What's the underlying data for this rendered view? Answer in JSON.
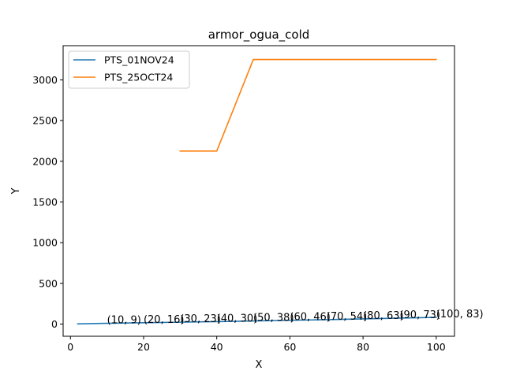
{
  "chart_data": {
    "type": "line",
    "title": "armor_ogua_cold",
    "xlabel": "X",
    "ylabel": "Y",
    "xlim": [
      -2,
      105
    ],
    "ylim": [
      -150,
      3420
    ],
    "xticks": [
      0,
      20,
      40,
      60,
      80,
      100
    ],
    "yticks": [
      0,
      500,
      1000,
      1500,
      2000,
      2500,
      3000
    ],
    "grid": false,
    "legend_position": "top-left",
    "series": [
      {
        "name": "PTS_01NOV24",
        "color": "#1f77b4",
        "x": [
          2,
          10,
          20,
          30,
          40,
          50,
          60,
          70,
          80,
          90,
          100
        ],
        "y": [
          2,
          9,
          16,
          23,
          30,
          38,
          46,
          54,
          63,
          73,
          83
        ]
      },
      {
        "name": "PTS_25OCT24",
        "color": "#ff7f0e",
        "x": [
          30,
          40,
          50,
          60,
          70,
          80,
          90,
          100
        ],
        "y": [
          2125,
          2125,
          3250,
          3250,
          3250,
          3250,
          3250,
          3250
        ]
      }
    ],
    "annotations": [
      {
        "x": 10,
        "y": 9,
        "text": "(10, 9)"
      },
      {
        "x": 20,
        "y": 16,
        "text": "(20, 16)"
      },
      {
        "x": 30,
        "y": 23,
        "text": "(30, 23)"
      },
      {
        "x": 40,
        "y": 30,
        "text": "(40, 30)"
      },
      {
        "x": 50,
        "y": 38,
        "text": "(50, 38)"
      },
      {
        "x": 60,
        "y": 46,
        "text": "(60, 46)"
      },
      {
        "x": 70,
        "y": 54,
        "text": "(70, 54)"
      },
      {
        "x": 80,
        "y": 63,
        "text": "(80, 63)"
      },
      {
        "x": 90,
        "y": 73,
        "text": "(90, 73)"
      },
      {
        "x": 100,
        "y": 83,
        "text": "(100, 83)"
      }
    ]
  }
}
